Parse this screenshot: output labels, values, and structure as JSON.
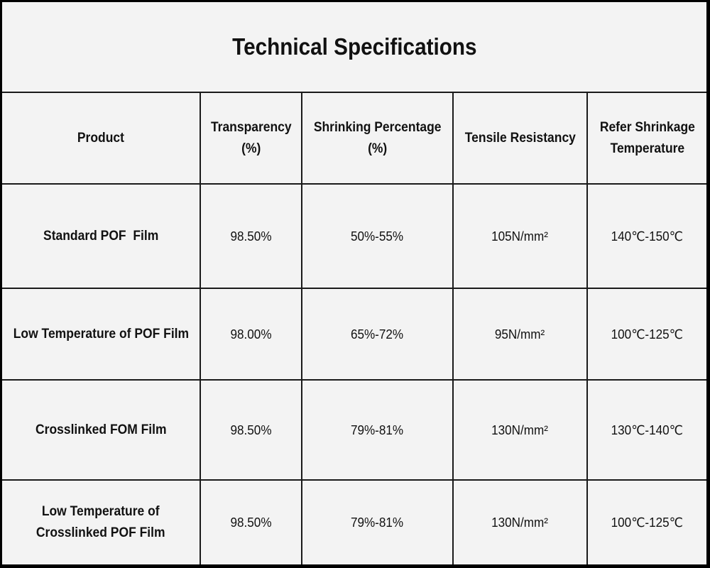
{
  "title": "Technical Specifications",
  "table": {
    "columns": [
      "Product",
      "Transparency\n(%)",
      "Shrinking Percentage\n(%)",
      "Tensile Resistancy",
      "Refer Shrinkage\nTemperature"
    ],
    "rows": [
      {
        "product": "Standard POF  Film",
        "transparency": "98.50%",
        "shrinking": "50%-55%",
        "tensile": "105N/mm²",
        "temperature": "140℃-150℃"
      },
      {
        "product": "Low Temperature of POF Film",
        "transparency": "98.00%",
        "shrinking": "65%-72%",
        "tensile": "95N/mm²",
        "temperature": "100℃-125℃"
      },
      {
        "product": "Crosslinked FOM Film",
        "transparency": "98.50%",
        "shrinking": "79%-81%",
        "tensile": "130N/mm²",
        "temperature": "130℃-140℃"
      },
      {
        "product": "Low Temperature of\nCrosslinked  POF Film",
        "transparency": "98.50%",
        "shrinking": "79%-81%",
        "tensile": "130N/mm²",
        "temperature": "100℃-125℃"
      }
    ]
  }
}
